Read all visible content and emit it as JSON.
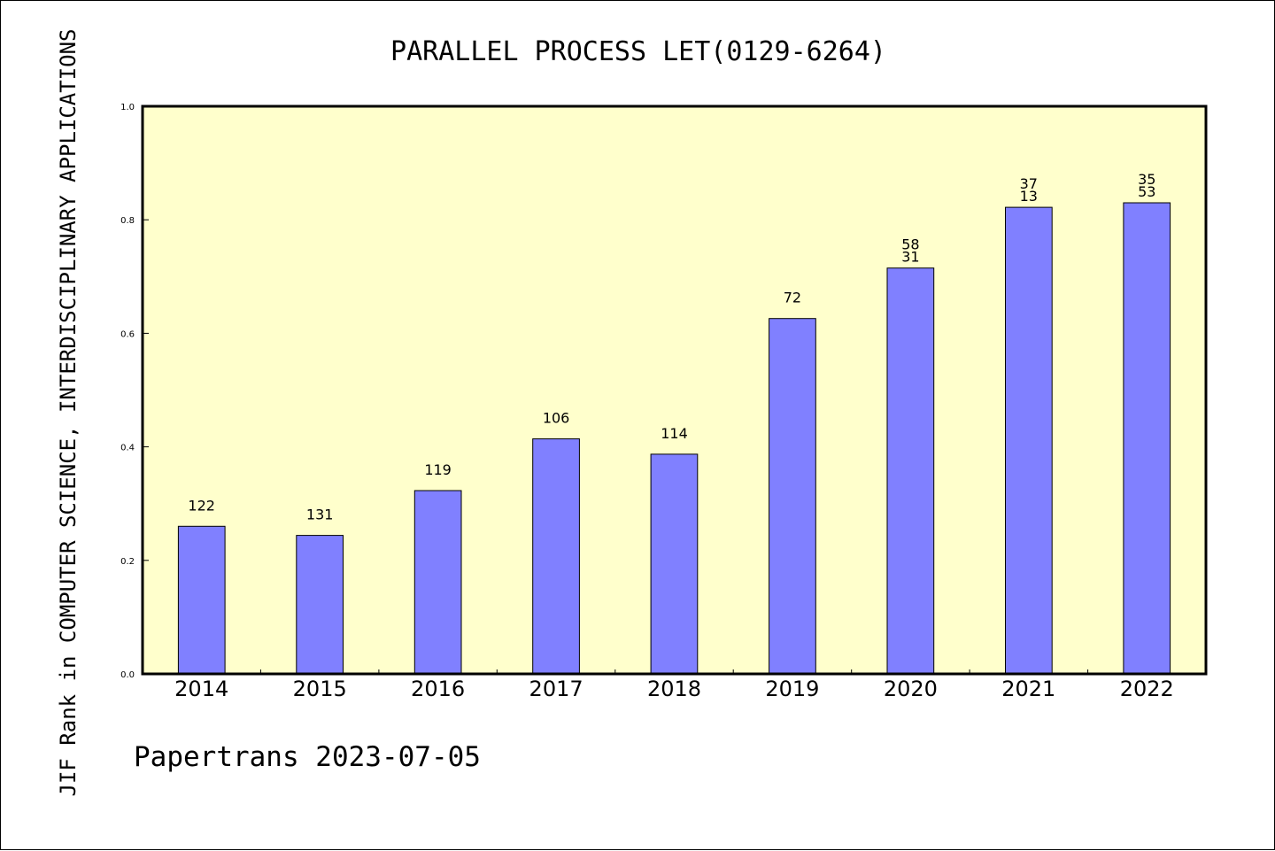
{
  "chart_data": {
    "type": "bar",
    "title": "PARALLEL PROCESS LET(0129-6264)",
    "xlabel": "",
    "ylabel": "JIF Rank in COMPUTER SCIENCE, INTERDISCIPLINARY APPLICATIONS",
    "categories": [
      "2014",
      "2015",
      "2016",
      "2017",
      "2018",
      "2019",
      "2020",
      "2021",
      "2022"
    ],
    "values": [
      0.26,
      0.244,
      0.323,
      0.414,
      0.387,
      0.626,
      0.715,
      0.822,
      0.83
    ],
    "labels": [
      [
        "122"
      ],
      [
        "131"
      ],
      [
        "119"
      ],
      [
        "106"
      ],
      [
        "114"
      ],
      [
        "72"
      ],
      [
        "58",
        "31"
      ],
      [
        "37",
        "13"
      ],
      [
        "35",
        "53"
      ]
    ],
    "ylim": [
      0,
      1.0
    ],
    "yticks": [
      "0.0",
      "0.2",
      "0.4",
      "0.6",
      "0.8",
      "1.0"
    ],
    "grid": false,
    "colors": {
      "bar": "#8080ff",
      "plot_background": "#ffffcc",
      "axis": "#000000"
    }
  },
  "footer": "Papertrans 2023-07-05"
}
